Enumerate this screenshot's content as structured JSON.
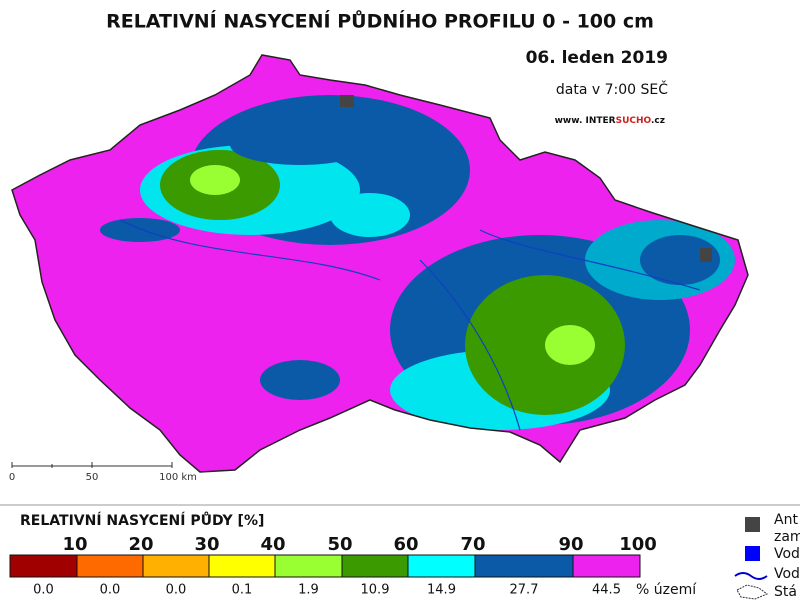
{
  "header": {
    "title": "RELATIVNÍ NASYCENÍ PŮDNÍHO PROFILU 0 - 100 cm",
    "date": "06. leden 2019",
    "time": "data v 7:00 SEČ",
    "source_prefix": "www. INTER",
    "source_highlight": "SUCHO",
    "source_suffix": ".cz"
  },
  "scale": {
    "labels": [
      "0",
      "50",
      "100 km"
    ]
  },
  "legend": {
    "title": "RELATIVNÍ NASYCENÍ PŮDY [%]",
    "thresholds": [
      "10",
      "20",
      "30",
      "40",
      "50",
      "60",
      "70",
      "90",
      "100"
    ],
    "classes": [
      {
        "color": "#a00000",
        "share": "0.0"
      },
      {
        "color": "#ff6a00",
        "share": "0.0"
      },
      {
        "color": "#ffb000",
        "share": "0.0"
      },
      {
        "color": "#ffff00",
        "share": "0.1"
      },
      {
        "color": "#99ff33",
        "share": "1.9"
      },
      {
        "color": "#3a9a00",
        "share": "10.9"
      },
      {
        "color": "#00ffff",
        "share": "14.9"
      },
      {
        "color": "#0a5aa8",
        "share": "27.7"
      },
      {
        "color": "#ee22ee",
        "share": "44.5"
      }
    ],
    "share_label": "% území"
  },
  "side_legend": {
    "items": [
      "Ant",
      "zam",
      "Vod",
      "Vod",
      "Stá"
    ]
  }
}
